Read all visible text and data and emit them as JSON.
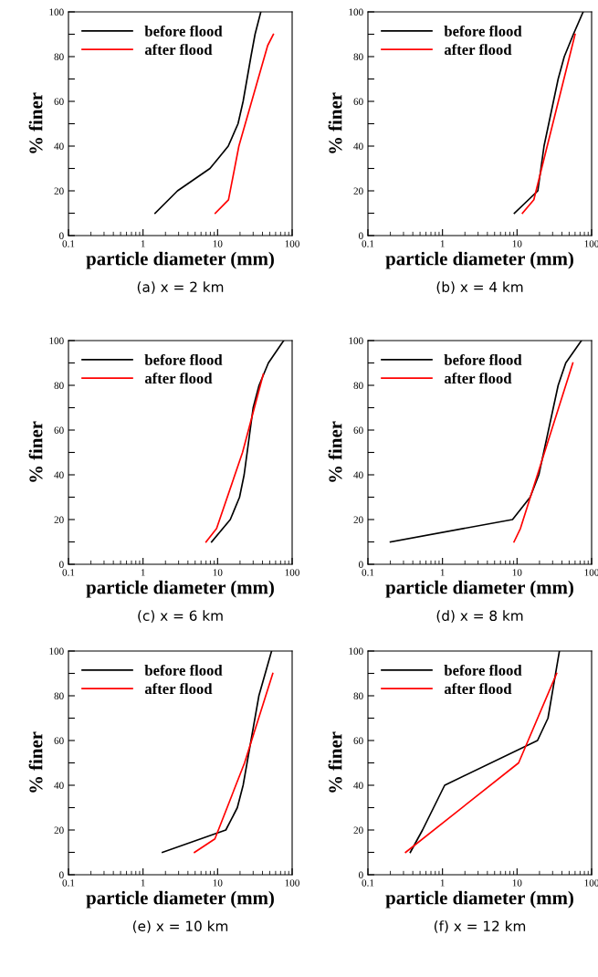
{
  "chart_data": [
    {
      "type": "line",
      "log": "x",
      "xlabel": "particle diameter (mm)",
      "ylabel": "% finer",
      "xlim": [
        0.1,
        100
      ],
      "ylim": [
        0,
        100
      ],
      "xticks": [
        0.1,
        1,
        10,
        100
      ],
      "yticks": [
        0,
        {
          "value": 10,
          "label": null
        },
        20,
        {
          "value": 30,
          "label": null
        },
        40,
        {
          "value": 50,
          "label": null
        },
        60,
        {
          "value": 70,
          "label": null
        },
        80,
        {
          "value": 90,
          "label": null
        },
        100
      ],
      "legend": "top left",
      "grid": false,
      "annotations": [
        "(a) x = 2 km"
      ],
      "series": [
        {
          "name": "before flood",
          "color": "#000000",
          "x": [
            1.45,
            2.9,
            7.9,
            10.5,
            13.9,
            18.8,
            22,
            28,
            31.8,
            38
          ],
          "values": [
            10,
            20,
            30,
            35,
            40,
            50,
            60,
            80,
            90,
            100
          ]
        },
        {
          "name": "after flood",
          "color": "#ff0000",
          "x": [
            9.3,
            14,
            19.3,
            47,
            56
          ],
          "values": [
            10,
            16,
            40,
            85,
            90
          ]
        }
      ]
    },
    {
      "type": "line",
      "log": "x",
      "xlabel": "particle diameter (mm)",
      "ylabel": "% finer",
      "xlim": [
        0.1,
        100
      ],
      "ylim": [
        0,
        100
      ],
      "xticks": [
        0.1,
        1,
        10,
        100
      ],
      "yticks": [
        0,
        {
          "value": 10,
          "label": null
        },
        20,
        {
          "value": 30,
          "label": null
        },
        40,
        {
          "value": 50,
          "label": null
        },
        60,
        {
          "value": 70,
          "label": null
        },
        80,
        {
          "value": 90,
          "label": null
        },
        100
      ],
      "legend": "top left",
      "grid": false,
      "annotations": [
        "(b) x = 4 km"
      ],
      "series": [
        {
          "name": "before flood",
          "color": "#000000",
          "x": [
            9.2,
            19,
            23,
            35.6,
            43,
            57,
            77
          ],
          "values": [
            10,
            20,
            40,
            70,
            80,
            90,
            100
          ]
        },
        {
          "name": "after flood",
          "color": "#ff0000",
          "x": [
            11.8,
            16.8,
            60
          ],
          "values": [
            10,
            16,
            90
          ]
        }
      ]
    },
    {
      "type": "line",
      "log": "x",
      "xlabel": "particle diameter (mm)",
      "ylabel": "% finer",
      "xlim": [
        0.1,
        100
      ],
      "ylim": [
        0,
        100
      ],
      "xticks": [
        0.1,
        1,
        10,
        100
      ],
      "yticks": [
        0,
        {
          "value": 10,
          "label": null
        },
        20,
        {
          "value": 30,
          "label": null
        },
        40,
        {
          "value": 50,
          "label": null
        },
        60,
        {
          "value": 70,
          "label": null
        },
        80,
        {
          "value": 90,
          "label": null
        },
        100
      ],
      "legend": "top left",
      "grid": false,
      "annotations": [
        "(c) x = 6 km"
      ],
      "series": [
        {
          "name": "before flood",
          "color": "#000000",
          "x": [
            8.3,
            14.8,
            19.7,
            22.7,
            30,
            36,
            48,
            77
          ],
          "values": [
            10,
            20,
            30,
            40,
            70,
            80,
            90,
            100
          ]
        },
        {
          "name": "after flood",
          "color": "#ff0000",
          "x": [
            7,
            9.7,
            21.6,
            41
          ],
          "values": [
            10,
            16,
            50,
            85
          ]
        }
      ]
    },
    {
      "type": "line",
      "log": "x",
      "xlabel": "particle diameter (mm)",
      "ylabel": "% finer",
      "xlim": [
        0.1,
        100
      ],
      "ylim": [
        0,
        100
      ],
      "xticks": [
        0.1,
        1,
        10,
        100
      ],
      "yticks": [
        0,
        {
          "value": 10,
          "label": null
        },
        20,
        {
          "value": 30,
          "label": null
        },
        40,
        {
          "value": 50,
          "label": null
        },
        60,
        {
          "value": 70,
          "label": null
        },
        80,
        {
          "value": 90,
          "label": null
        },
        100
      ],
      "legend": "top left",
      "grid": false,
      "annotations": [
        "(d) x = 8 km"
      ],
      "series": [
        {
          "name": "before flood",
          "color": "#000000",
          "x": [
            0.2,
            8.7,
            15,
            19.6,
            35.6,
            45,
            73
          ],
          "values": [
            10,
            20,
            30,
            40,
            80,
            90,
            100
          ]
        },
        {
          "name": "after flood",
          "color": "#ff0000",
          "x": [
            9.1,
            11.1,
            56
          ],
          "values": [
            10,
            16,
            90
          ]
        }
      ]
    },
    {
      "type": "line",
      "log": "x",
      "xlabel": "particle diameter (mm)",
      "ylabel": "% finer",
      "xlim": [
        0.1,
        100
      ],
      "ylim": [
        0,
        100
      ],
      "xticks": [
        0.1,
        1,
        10,
        100
      ],
      "yticks": [
        0,
        {
          "value": 10,
          "label": null
        },
        20,
        {
          "value": 30,
          "label": null
        },
        40,
        {
          "value": 50,
          "label": null
        },
        60,
        {
          "value": 70,
          "label": null
        },
        80,
        {
          "value": 90,
          "label": null
        },
        100
      ],
      "legend": "top left",
      "grid": false,
      "annotations": [
        "(e) x = 10 km"
      ],
      "series": [
        {
          "name": "before flood",
          "color": "#000000",
          "x": [
            1.82,
            12.9,
            18.4,
            22,
            35.8,
            53
          ],
          "values": [
            10,
            20,
            30,
            40,
            80,
            100
          ]
        },
        {
          "name": "after flood",
          "color": "#ff0000",
          "x": [
            4.9,
            9.2,
            23,
            55
          ],
          "values": [
            10,
            16,
            50,
            90
          ]
        }
      ]
    },
    {
      "type": "line",
      "log": "x",
      "xlabel": "particle diameter (mm)",
      "ylabel": "% finer",
      "xlim": [
        0.1,
        100
      ],
      "ylim": [
        0,
        100
      ],
      "xticks": [
        0.1,
        1,
        10,
        100
      ],
      "yticks": [
        0,
        {
          "value": 10,
          "label": null
        },
        20,
        {
          "value": 30,
          "label": null
        },
        40,
        {
          "value": 50,
          "label": null
        },
        60,
        {
          "value": 70,
          "label": null
        },
        80,
        {
          "value": 90,
          "label": null
        },
        100
      ],
      "legend": "top left",
      "grid": false,
      "annotations": [
        "(f) x = 12 km"
      ],
      "series": [
        {
          "name": "before flood",
          "color": "#000000",
          "x": [
            0.37,
            0.54,
            0.76,
            1.07,
            18.8,
            26,
            37
          ],
          "values": [
            10,
            20,
            30,
            40,
            60,
            70,
            100
          ]
        },
        {
          "name": "after flood",
          "color": "#ff0000",
          "x": [
            0.32,
            10.5,
            34
          ],
          "values": [
            10,
            50,
            90
          ]
        }
      ]
    }
  ]
}
